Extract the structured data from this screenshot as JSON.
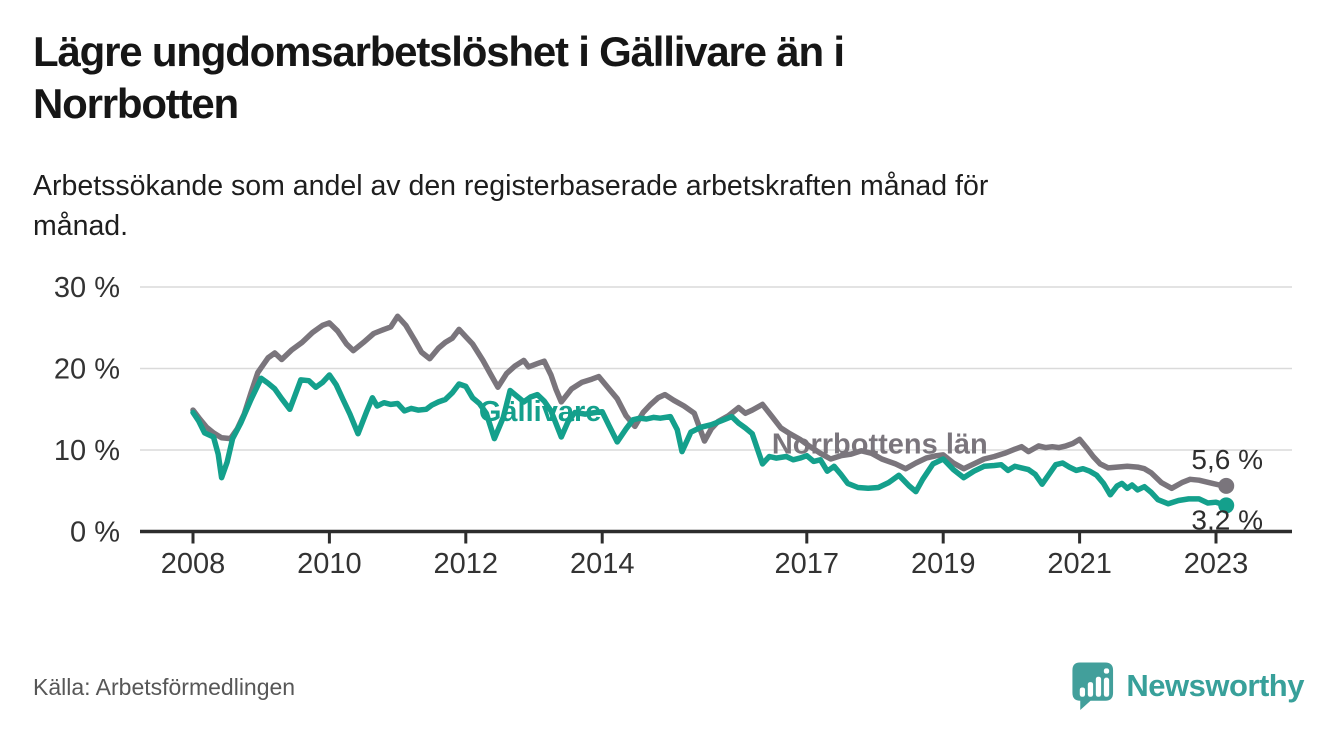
{
  "header": {
    "title_lines": [
      "Lägre ungdomsarbetslöshet i Gällivare än i",
      "Norrbotten"
    ],
    "subtitle_lines": [
      "Arbetssökande som andel av den registerbaserade arbetskraften månad för",
      "månad."
    ]
  },
  "footer": {
    "source": "Källa: Arbetsförmedlingen",
    "logo_text": "Newsworthy"
  },
  "colors": {
    "gallivare": "#14a08c",
    "norrbotten": "#7a757c",
    "axis": "#2d2d2d",
    "grid": "#dadada",
    "tick_text": "#333333",
    "end_label_text": "#2e2e2e",
    "logo": "#429f9b"
  },
  "chart_data": {
    "type": "line",
    "title": "Lägre ungdomsarbetslöshet i Gällivare än i Norrbotten",
    "subtitle": "Arbetssökande som andel av den registerbaserade arbetskraften månad för månad.",
    "ylabel": "",
    "xlabel": "",
    "ylim": [
      0,
      30
    ],
    "xlim": [
      2007.2,
      2024.1
    ],
    "grid": "horizontal",
    "legend": "inline-labels",
    "y_ticks": [
      {
        "value": 0,
        "label": "0 %"
      },
      {
        "value": 10,
        "label": "10 %"
      },
      {
        "value": 20,
        "label": "20 %"
      },
      {
        "value": 30,
        "label": "30 %"
      }
    ],
    "x_ticks": [
      {
        "year": 2008,
        "label": "2008"
      },
      {
        "year": 2010,
        "label": "2010"
      },
      {
        "year": 2012,
        "label": "2012"
      },
      {
        "year": 2014,
        "label": "2014"
      },
      {
        "year": 2017,
        "label": "2017"
      },
      {
        "year": 2019,
        "label": "2019"
      },
      {
        "year": 2021,
        "label": "2021"
      },
      {
        "year": 2023,
        "label": "2023"
      }
    ],
    "series": [
      {
        "name": "Norrbottens län",
        "color_key": "norrbotten",
        "end_label": "5,6 %",
        "end_value": 5.6,
        "label_at": [
          2018.07,
          10.8
        ],
        "end_label_dy": -17,
        "points": [
          [
            2008.0,
            14.9
          ],
          [
            2008.1,
            13.8
          ],
          [
            2008.2,
            12.8
          ],
          [
            2008.3,
            12.1
          ],
          [
            2008.42,
            11.5
          ],
          [
            2008.55,
            11.4
          ],
          [
            2008.65,
            12.6
          ],
          [
            2008.75,
            14.4
          ],
          [
            2008.85,
            17.0
          ],
          [
            2008.95,
            19.5
          ],
          [
            2009.1,
            21.3
          ],
          [
            2009.2,
            21.9
          ],
          [
            2009.3,
            21.1
          ],
          [
            2009.45,
            22.3
          ],
          [
            2009.6,
            23.2
          ],
          [
            2009.75,
            24.4
          ],
          [
            2009.9,
            25.3
          ],
          [
            2010.0,
            25.6
          ],
          [
            2010.12,
            24.6
          ],
          [
            2010.25,
            23.0
          ],
          [
            2010.35,
            22.2
          ],
          [
            2010.5,
            23.2
          ],
          [
            2010.65,
            24.3
          ],
          [
            2010.8,
            24.8
          ],
          [
            2010.9,
            25.1
          ],
          [
            2011.0,
            26.4
          ],
          [
            2011.12,
            25.3
          ],
          [
            2011.25,
            23.5
          ],
          [
            2011.35,
            22.0
          ],
          [
            2011.47,
            21.2
          ],
          [
            2011.6,
            22.5
          ],
          [
            2011.7,
            23.2
          ],
          [
            2011.8,
            23.7
          ],
          [
            2011.9,
            24.8
          ],
          [
            2012.0,
            23.9
          ],
          [
            2012.1,
            23.0
          ],
          [
            2012.25,
            21.0
          ],
          [
            2012.35,
            19.5
          ],
          [
            2012.47,
            17.7
          ],
          [
            2012.6,
            19.4
          ],
          [
            2012.72,
            20.3
          ],
          [
            2012.85,
            21.0
          ],
          [
            2012.92,
            20.2
          ],
          [
            2013.05,
            20.6
          ],
          [
            2013.15,
            20.9
          ],
          [
            2013.25,
            19.2
          ],
          [
            2013.32,
            17.5
          ],
          [
            2013.4,
            15.9
          ],
          [
            2013.55,
            17.5
          ],
          [
            2013.7,
            18.3
          ],
          [
            2013.85,
            18.7
          ],
          [
            2013.95,
            19.0
          ],
          [
            2014.1,
            17.5
          ],
          [
            2014.22,
            16.3
          ],
          [
            2014.35,
            14.2
          ],
          [
            2014.48,
            12.9
          ],
          [
            2014.6,
            14.6
          ],
          [
            2014.7,
            15.5
          ],
          [
            2014.82,
            16.4
          ],
          [
            2014.92,
            16.8
          ],
          [
            2015.05,
            16.1
          ],
          [
            2015.2,
            15.4
          ],
          [
            2015.35,
            14.5
          ],
          [
            2015.5,
            11.1
          ],
          [
            2015.6,
            12.6
          ],
          [
            2015.7,
            13.5
          ],
          [
            2015.85,
            14.2
          ],
          [
            2016.0,
            15.2
          ],
          [
            2016.1,
            14.5
          ],
          [
            2016.2,
            14.9
          ],
          [
            2016.35,
            15.6
          ],
          [
            2016.5,
            14.0
          ],
          [
            2016.62,
            12.7
          ],
          [
            2016.75,
            12.0
          ],
          [
            2016.9,
            11.3
          ],
          [
            2017.05,
            10.4
          ],
          [
            2017.2,
            9.6
          ],
          [
            2017.35,
            8.9
          ],
          [
            2017.5,
            9.3
          ],
          [
            2017.65,
            9.5
          ],
          [
            2017.8,
            9.9
          ],
          [
            2017.95,
            9.6
          ],
          [
            2018.1,
            8.9
          ],
          [
            2018.3,
            8.3
          ],
          [
            2018.45,
            7.7
          ],
          [
            2018.6,
            8.4
          ],
          [
            2018.75,
            9.0
          ],
          [
            2018.9,
            9.3
          ],
          [
            2019.0,
            9.4
          ],
          [
            2019.15,
            8.4
          ],
          [
            2019.3,
            7.7
          ],
          [
            2019.45,
            8.3
          ],
          [
            2019.6,
            8.9
          ],
          [
            2019.75,
            9.2
          ],
          [
            2019.9,
            9.6
          ],
          [
            2020.05,
            10.1
          ],
          [
            2020.15,
            10.4
          ],
          [
            2020.25,
            9.8
          ],
          [
            2020.4,
            10.5
          ],
          [
            2020.5,
            10.3
          ],
          [
            2020.6,
            10.4
          ],
          [
            2020.7,
            10.3
          ],
          [
            2020.8,
            10.5
          ],
          [
            2020.9,
            10.8
          ],
          [
            2021.0,
            11.3
          ],
          [
            2021.1,
            10.3
          ],
          [
            2021.2,
            9.2
          ],
          [
            2021.3,
            8.3
          ],
          [
            2021.42,
            7.8
          ],
          [
            2021.55,
            7.9
          ],
          [
            2021.7,
            8.0
          ],
          [
            2021.85,
            7.9
          ],
          [
            2021.95,
            7.7
          ],
          [
            2022.05,
            7.2
          ],
          [
            2022.2,
            6.0
          ],
          [
            2022.35,
            5.3
          ],
          [
            2022.5,
            6.0
          ],
          [
            2022.62,
            6.4
          ],
          [
            2022.75,
            6.3
          ],
          [
            2022.85,
            6.1
          ],
          [
            2022.95,
            5.9
          ],
          [
            2023.05,
            5.7
          ],
          [
            2023.15,
            5.6
          ]
        ]
      },
      {
        "name": "Gällivare",
        "color_key": "gallivare",
        "end_label": "3,2 %",
        "end_value": 3.2,
        "label_at": [
          2013.09,
          14.8
        ],
        "end_label_dy": 24,
        "points": [
          [
            2008.0,
            14.6
          ],
          [
            2008.08,
            13.6
          ],
          [
            2008.17,
            12.1
          ],
          [
            2008.3,
            11.6
          ],
          [
            2008.37,
            9.5
          ],
          [
            2008.42,
            6.6
          ],
          [
            2008.5,
            8.5
          ],
          [
            2008.58,
            11.4
          ],
          [
            2008.7,
            13.3
          ],
          [
            2008.85,
            16.2
          ],
          [
            2009.0,
            18.8
          ],
          [
            2009.1,
            18.2
          ],
          [
            2009.2,
            17.5
          ],
          [
            2009.3,
            16.3
          ],
          [
            2009.42,
            15.0
          ],
          [
            2009.5,
            16.8
          ],
          [
            2009.58,
            18.6
          ],
          [
            2009.7,
            18.5
          ],
          [
            2009.8,
            17.7
          ],
          [
            2009.9,
            18.3
          ],
          [
            2010.0,
            19.2
          ],
          [
            2010.1,
            18.0
          ],
          [
            2010.2,
            16.2
          ],
          [
            2010.3,
            14.4
          ],
          [
            2010.42,
            12.0
          ],
          [
            2010.55,
            14.8
          ],
          [
            2010.63,
            16.4
          ],
          [
            2010.7,
            15.4
          ],
          [
            2010.8,
            15.8
          ],
          [
            2010.9,
            15.6
          ],
          [
            2011.0,
            15.7
          ],
          [
            2011.1,
            14.8
          ],
          [
            2011.2,
            15.1
          ],
          [
            2011.3,
            14.9
          ],
          [
            2011.42,
            15.0
          ],
          [
            2011.5,
            15.5
          ],
          [
            2011.6,
            15.9
          ],
          [
            2011.7,
            16.2
          ],
          [
            2011.8,
            17.0
          ],
          [
            2011.9,
            18.1
          ],
          [
            2012.0,
            17.8
          ],
          [
            2012.1,
            16.4
          ],
          [
            2012.2,
            15.7
          ],
          [
            2012.3,
            14.5
          ],
          [
            2012.42,
            11.4
          ],
          [
            2012.55,
            14.0
          ],
          [
            2012.65,
            17.3
          ],
          [
            2012.75,
            16.6
          ],
          [
            2012.85,
            15.9
          ],
          [
            2012.95,
            16.5
          ],
          [
            2013.05,
            16.8
          ],
          [
            2013.15,
            16.0
          ],
          [
            2013.25,
            14.8
          ],
          [
            2013.4,
            11.6
          ],
          [
            2013.5,
            13.5
          ],
          [
            2013.6,
            14.6
          ],
          [
            2013.75,
            14.4
          ],
          [
            2013.9,
            14.6
          ],
          [
            2014.0,
            14.7
          ],
          [
            2014.1,
            13.0
          ],
          [
            2014.22,
            11.0
          ],
          [
            2014.35,
            12.6
          ],
          [
            2014.45,
            13.7
          ],
          [
            2014.55,
            13.9
          ],
          [
            2014.65,
            13.8
          ],
          [
            2014.75,
            14.0
          ],
          [
            2014.85,
            13.9
          ],
          [
            2015.0,
            14.1
          ],
          [
            2015.1,
            12.5
          ],
          [
            2015.17,
            9.8
          ],
          [
            2015.3,
            12.2
          ],
          [
            2015.45,
            12.8
          ],
          [
            2015.6,
            13.1
          ],
          [
            2015.75,
            13.6
          ],
          [
            2015.9,
            14.1
          ],
          [
            2016.0,
            13.3
          ],
          [
            2016.1,
            12.7
          ],
          [
            2016.2,
            12.0
          ],
          [
            2016.35,
            8.3
          ],
          [
            2016.45,
            9.2
          ],
          [
            2016.55,
            9.0
          ],
          [
            2016.7,
            9.2
          ],
          [
            2016.8,
            8.8
          ],
          [
            2016.9,
            9.0
          ],
          [
            2017.0,
            9.3
          ],
          [
            2017.1,
            8.6
          ],
          [
            2017.2,
            8.8
          ],
          [
            2017.3,
            7.4
          ],
          [
            2017.4,
            8.0
          ],
          [
            2017.5,
            7.0
          ],
          [
            2017.6,
            5.9
          ],
          [
            2017.75,
            5.4
          ],
          [
            2017.9,
            5.3
          ],
          [
            2018.05,
            5.4
          ],
          [
            2018.2,
            6.0
          ],
          [
            2018.35,
            6.9
          ],
          [
            2018.5,
            5.6
          ],
          [
            2018.6,
            4.9
          ],
          [
            2018.7,
            6.4
          ],
          [
            2018.85,
            8.3
          ],
          [
            2019.0,
            8.9
          ],
          [
            2019.15,
            7.6
          ],
          [
            2019.3,
            6.6
          ],
          [
            2019.45,
            7.4
          ],
          [
            2019.6,
            8.0
          ],
          [
            2019.75,
            8.1
          ],
          [
            2019.85,
            8.2
          ],
          [
            2019.95,
            7.5
          ],
          [
            2020.05,
            8.0
          ],
          [
            2020.15,
            7.8
          ],
          [
            2020.25,
            7.6
          ],
          [
            2020.35,
            7.0
          ],
          [
            2020.45,
            5.8
          ],
          [
            2020.55,
            7.0
          ],
          [
            2020.65,
            8.2
          ],
          [
            2020.75,
            8.4
          ],
          [
            2020.85,
            7.9
          ],
          [
            2020.95,
            7.5
          ],
          [
            2021.05,
            7.7
          ],
          [
            2021.15,
            7.4
          ],
          [
            2021.25,
            6.9
          ],
          [
            2021.35,
            5.9
          ],
          [
            2021.45,
            4.5
          ],
          [
            2021.55,
            5.6
          ],
          [
            2021.62,
            5.9
          ],
          [
            2021.7,
            5.3
          ],
          [
            2021.77,
            5.7
          ],
          [
            2021.85,
            5.1
          ],
          [
            2021.95,
            5.5
          ],
          [
            2022.05,
            4.8
          ],
          [
            2022.15,
            3.9
          ],
          [
            2022.3,
            3.4
          ],
          [
            2022.45,
            3.8
          ],
          [
            2022.6,
            4.0
          ],
          [
            2022.75,
            4.0
          ],
          [
            2022.88,
            3.5
          ],
          [
            2023.0,
            3.6
          ],
          [
            2023.15,
            3.2
          ]
        ]
      }
    ]
  }
}
